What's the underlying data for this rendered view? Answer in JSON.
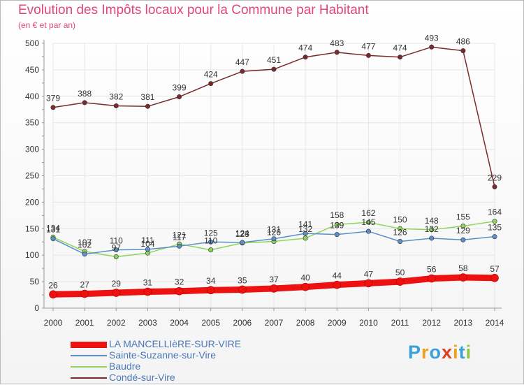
{
  "title": "Evolution des Impôts locaux pour la Commune par Habitant",
  "subtitle": "(en € et par an)",
  "brand": {
    "letters": [
      "P",
      "r",
      "o",
      "x",
      "i",
      "t",
      "i"
    ],
    "colors": [
      "#3aa0d8",
      "#f0a020",
      "#3aa0d8",
      "#e04020",
      "#f0a020",
      "#3aa0d8",
      "#8cc63f"
    ]
  },
  "chart_data": {
    "type": "line",
    "x": [
      "2000",
      "2001",
      "2002",
      "2003",
      "2004",
      "2005",
      "2006",
      "2007",
      "2008",
      "2009",
      "2010",
      "2011",
      "2012",
      "2013",
      "2014"
    ],
    "ylim": [
      0,
      500
    ],
    "yticks": [
      "0",
      "50",
      "100",
      "150",
      "200",
      "250",
      "300",
      "350",
      "400",
      "450",
      "500"
    ],
    "grid": true,
    "legend_position": "bottom-left",
    "series": [
      {
        "name": "Condé-sur-Vire",
        "color": "#7a2a2a",
        "width": 1.5,
        "values": [
          379,
          388,
          382,
          381,
          399,
          424,
          447,
          451,
          474,
          483,
          477,
          474,
          493,
          486,
          229
        ],
        "labels": [
          "379",
          "388",
          "382",
          "381",
          "399",
          "424",
          "447",
          "451",
          "474",
          "483",
          "477",
          "474",
          "493",
          "486",
          "229"
        ]
      },
      {
        "name": "Baudre",
        "color": "#8fd45a",
        "width": 1.5,
        "values": [
          134,
          107,
          97,
          104,
          121,
          110,
          123,
          126,
          132,
          158,
          162,
          150,
          148,
          155,
          164
        ],
        "labels": [
          "134",
          "107",
          "97",
          "104",
          "121",
          "110",
          "123",
          "126",
          "132",
          "158",
          "162",
          "150",
          "148",
          "155",
          "164"
        ]
      },
      {
        "name": "Sainte-Suzanne-sur-Vire",
        "color": "#5a8fc8",
        "width": 1.5,
        "values": [
          131,
          102,
          110,
          111,
          117,
          125,
          124,
          131,
          141,
          139,
          145,
          126,
          132,
          129,
          135
        ],
        "labels": [
          "131",
          "102",
          "110",
          "111",
          "117",
          "125",
          "124",
          "131",
          "141",
          "139",
          "145",
          "126",
          "132",
          "129",
          "135"
        ]
      },
      {
        "name": "LA MANCELLIèRE-SUR-VIRE",
        "color": "#ee1111",
        "width": 9,
        "values": [
          26,
          27,
          29,
          31,
          32,
          34,
          35,
          37,
          40,
          44,
          47,
          50,
          56,
          58,
          57
        ],
        "labels": [
          "26",
          "27",
          "29",
          "31",
          "32",
          "34",
          "35",
          "37",
          "40",
          "44",
          "47",
          "50",
          "56",
          "58",
          "57"
        ]
      }
    ],
    "legend": [
      {
        "label": "LA MANCELLIèRE-SUR-VIRE",
        "color": "#ee1111",
        "width": 9
      },
      {
        "label": "Sainte-Suzanne-sur-Vire",
        "color": "#5a8fc8",
        "width": 2
      },
      {
        "label": "Baudre",
        "color": "#8fd45a",
        "width": 2
      },
      {
        "label": "Condé-sur-Vire",
        "color": "#7a2a2a",
        "width": 2
      }
    ]
  }
}
